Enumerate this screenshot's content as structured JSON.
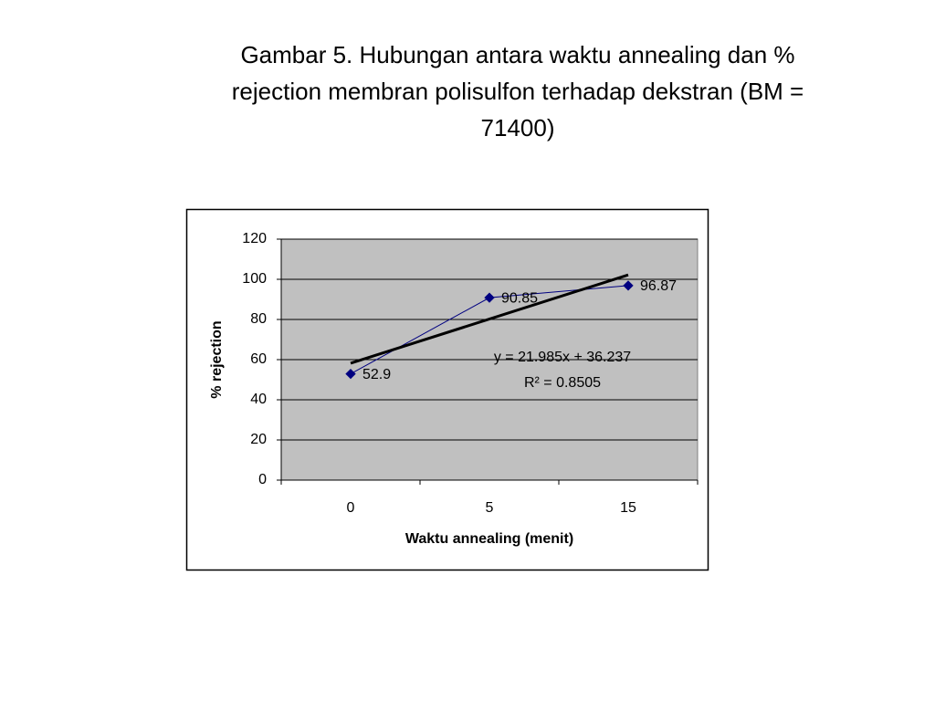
{
  "chart_data": {
    "type": "line",
    "title": "Gambar 5. Hubungan antara waktu annealing dan % rejection membran polisulfon terhadap dekstran (BM = 71400)",
    "x_label": "Waktu annealing (menit)",
    "y_label": "% rejection",
    "categories": [
      "0",
      "5",
      "15"
    ],
    "series": [
      {
        "name": "% rejection",
        "color": "#000080",
        "values": [
          52.9,
          90.85,
          96.87
        ]
      }
    ],
    "ylim": [
      0,
      120
    ],
    "yticks": [
      0,
      20,
      40,
      60,
      80,
      100,
      120
    ],
    "grid": true,
    "plot_background": "#c0c0c0",
    "trendline": {
      "slope": 21.985,
      "intercept": 36.237,
      "color": "#000000",
      "equation": "y = 21.985x + 36.237",
      "r_squared_label": "R² = 0.8505"
    }
  }
}
